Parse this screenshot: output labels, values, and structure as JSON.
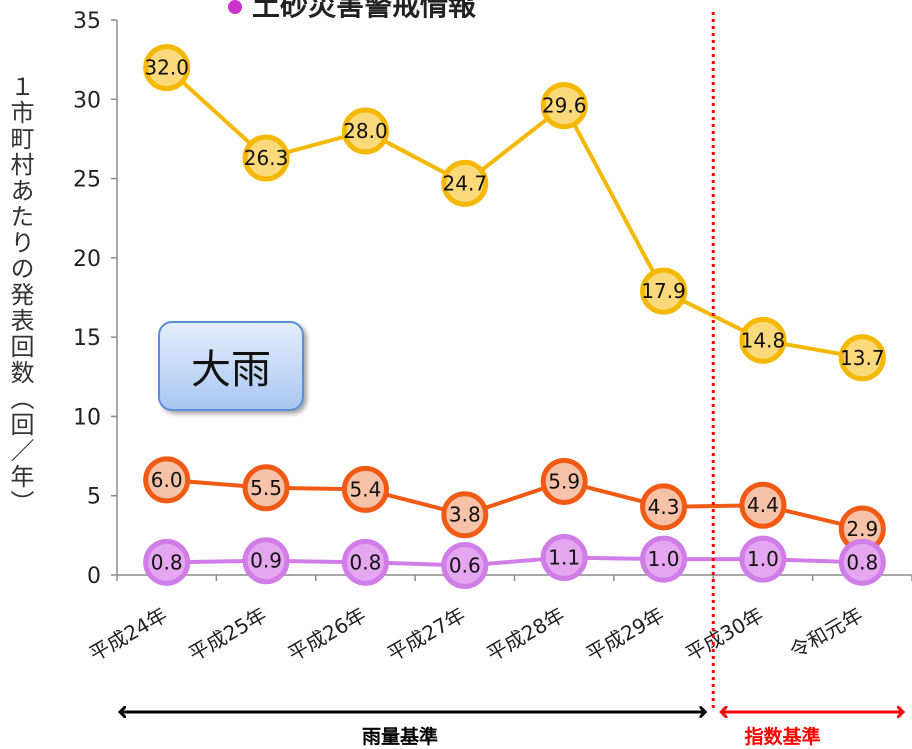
{
  "title_fragment": "土砂災害警戒情報",
  "y_axis_label": "１市町村あたりの発表回数（回／年）",
  "callout_label": "大雨",
  "periods": {
    "rain_basis": "雨量基準",
    "index_basis": "指数基準"
  },
  "colors": {
    "series_top_line": "#f5b800",
    "series_top_fill": "#fcd97a",
    "series_mid_line": "#f05a14",
    "series_mid_fill": "#f8c2a8",
    "series_bottom_line": "#d17de8",
    "series_bottom_fill": "#e3a6ef",
    "divider": "#ff0000",
    "rain_arrow": "#000000",
    "index_arrow": "#ff0000"
  },
  "chart_data": {
    "type": "line",
    "categories": [
      "平成24年",
      "平成25年",
      "平成26年",
      "平成27年",
      "平成28年",
      "平成29年",
      "平成30年",
      "令和元年"
    ],
    "ylim": [
      0,
      35
    ],
    "yticks": [
      0,
      5,
      10,
      15,
      20,
      25,
      30,
      35
    ],
    "series": [
      {
        "values": [
          32.0,
          26.3,
          28.0,
          24.7,
          29.6,
          17.9,
          14.8,
          13.7
        ]
      },
      {
        "values": [
          6.0,
          5.5,
          5.4,
          3.8,
          5.9,
          4.3,
          4.4,
          2.9
        ]
      },
      {
        "values": [
          0.8,
          0.9,
          0.8,
          0.6,
          1.1,
          1.0,
          1.0,
          0.8
        ]
      }
    ],
    "divider_between": [
      "平成29年",
      "平成30年"
    ],
    "grid": false
  }
}
